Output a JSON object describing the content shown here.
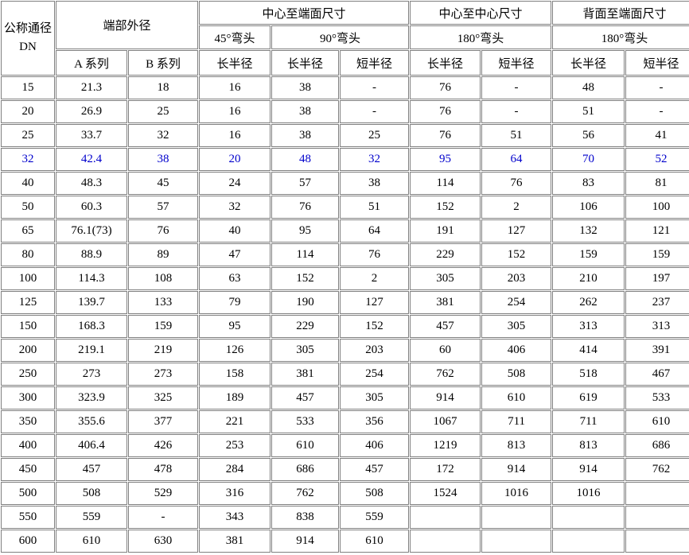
{
  "header": {
    "dn_line1": "公称通径",
    "dn_line2": "DN",
    "end_od": "端部外径",
    "center_to_end": "中心至端面尺寸",
    "center_to_center": "中心至中心尺寸",
    "back_to_end": "背面至端面尺寸",
    "elbow45": "45°弯头",
    "elbow90": "90°弯头",
    "elbow180_cc": "180°弯头",
    "elbow180_be": "180°弯头",
    "series_a": "A 系列",
    "series_b": "B 系列",
    "long_r_45": "长半径",
    "long_r_90": "长半径",
    "short_r_90": "短半径",
    "long_r_180cc": "长半径",
    "short_r_180cc": "短半径",
    "long_r_180be": "长半径",
    "short_r_180be": "短半径"
  },
  "colors": {
    "text": "#000000",
    "highlight_text": "#0000cc",
    "border": "#808080",
    "background": "#ffffff"
  },
  "rows": [
    {
      "highlight": false,
      "cells": [
        "15",
        "21.3",
        "18",
        "16",
        "38",
        "-",
        "76",
        "-",
        "48",
        "-"
      ]
    },
    {
      "highlight": false,
      "cells": [
        "20",
        "26.9",
        "25",
        "16",
        "38",
        "-",
        "76",
        "-",
        "51",
        "-"
      ]
    },
    {
      "highlight": false,
      "cells": [
        "25",
        "33.7",
        "32",
        "16",
        "38",
        "25",
        "76",
        "51",
        "56",
        "41"
      ]
    },
    {
      "highlight": true,
      "cells": [
        "32",
        "42.4",
        "38",
        "20",
        "48",
        "32",
        "95",
        "64",
        "70",
        "52"
      ]
    },
    {
      "highlight": false,
      "cells": [
        "40",
        "48.3",
        "45",
        "24",
        "57",
        "38",
        "114",
        "76",
        "83",
        "81"
      ]
    },
    {
      "highlight": false,
      "cells": [
        "50",
        "60.3",
        "57",
        "32",
        "76",
        "51",
        "152",
        "2",
        "106",
        "100"
      ]
    },
    {
      "highlight": false,
      "cells": [
        "65",
        "76.1(73)",
        "76",
        "40",
        "95",
        "64",
        "191",
        "127",
        "132",
        "121"
      ]
    },
    {
      "highlight": false,
      "cells": [
        "80",
        "88.9",
        "89",
        "47",
        "114",
        "76",
        "229",
        "152",
        "159",
        "159"
      ]
    },
    {
      "highlight": false,
      "cells": [
        "100",
        "114.3",
        "108",
        "63",
        "152",
        "2",
        "305",
        "203",
        "210",
        "197"
      ]
    },
    {
      "highlight": false,
      "cells": [
        "125",
        "139.7",
        "133",
        "79",
        "190",
        "127",
        "381",
        "254",
        "262",
        "237"
      ]
    },
    {
      "highlight": false,
      "cells": [
        "150",
        "168.3",
        "159",
        "95",
        "229",
        "152",
        "457",
        "305",
        "313",
        "313"
      ]
    },
    {
      "highlight": false,
      "cells": [
        "200",
        "219.1",
        "219",
        "126",
        "305",
        "203",
        "60",
        "406",
        "414",
        "391"
      ]
    },
    {
      "highlight": false,
      "cells": [
        "250",
        "273",
        "273",
        "158",
        "381",
        "254",
        "762",
        "508",
        "518",
        "467"
      ]
    },
    {
      "highlight": false,
      "cells": [
        "300",
        "323.9",
        "325",
        "189",
        "457",
        "305",
        "914",
        "610",
        "619",
        "533"
      ]
    },
    {
      "highlight": false,
      "cells": [
        "350",
        "355.6",
        "377",
        "221",
        "533",
        "356",
        "1067",
        "711",
        "711",
        "610"
      ]
    },
    {
      "highlight": false,
      "cells": [
        "400",
        "406.4",
        "426",
        "253",
        "610",
        "406",
        "1219",
        "813",
        "813",
        "686"
      ]
    },
    {
      "highlight": false,
      "cells": [
        "450",
        "457",
        "478",
        "284",
        "686",
        "457",
        "172",
        "914",
        "914",
        "762"
      ]
    },
    {
      "highlight": false,
      "cells": [
        "500",
        "508",
        "529",
        "316",
        "762",
        "508",
        "1524",
        "1016",
        "1016",
        ""
      ]
    },
    {
      "highlight": false,
      "cells": [
        "550",
        "559",
        "-",
        "343",
        "838",
        "559",
        "",
        "",
        "",
        ""
      ]
    },
    {
      "highlight": false,
      "cells": [
        "600",
        "610",
        "630",
        "381",
        "914",
        "610",
        "",
        "",
        "",
        ""
      ]
    }
  ]
}
